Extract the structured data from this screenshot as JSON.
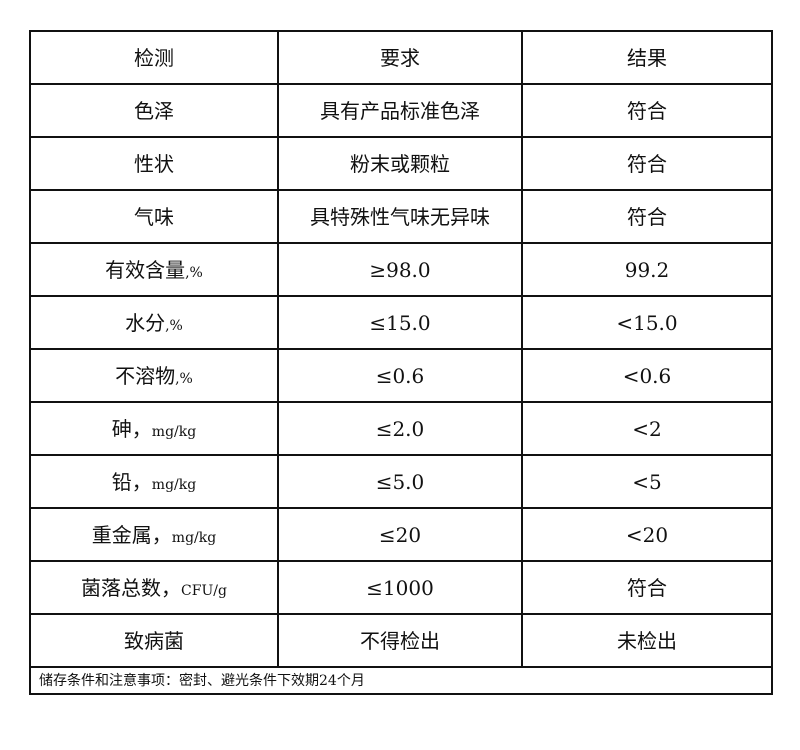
{
  "header": {
    "item": "检测",
    "requirement": "要求",
    "result": "结果"
  },
  "rows": [
    {
      "item": "色泽",
      "unit": "",
      "requirement": "具有产品标准色泽",
      "result": "符合"
    },
    {
      "item": "性状",
      "unit": "",
      "requirement": "粉末或颗粒",
      "result": "符合"
    },
    {
      "item": "气味",
      "unit": "",
      "requirement": "具特殊性气味无异味",
      "result": "符合"
    },
    {
      "item": "有效含量",
      "unit": ",%",
      "requirement": "≥98.0",
      "result": "99.2"
    },
    {
      "item": "水分",
      "unit": ",%",
      "requirement": "≤15.0",
      "result": "<15.0"
    },
    {
      "item": "不溶物",
      "unit": ",%",
      "requirement": "≤0.6",
      "result": "<0.6"
    },
    {
      "item": "砷，",
      "unit": "mg/kg",
      "requirement": "≤2.0",
      "result": "<2"
    },
    {
      "item": "铅，",
      "unit": "mg/kg",
      "requirement": "≤5.0",
      "result": "<5"
    },
    {
      "item": "重金属，",
      "unit": "mg/kg",
      "requirement": "≤20",
      "result": "<20"
    },
    {
      "item": "菌落总数，",
      "unit": "CFU/g",
      "requirement": "≤1000",
      "result": "符合"
    },
    {
      "item": "致病菌",
      "unit": "",
      "requirement": "不得检出",
      "result": "未检出"
    }
  ],
  "footer": "储存条件和注意事项：密封、避光条件下效期24个月"
}
